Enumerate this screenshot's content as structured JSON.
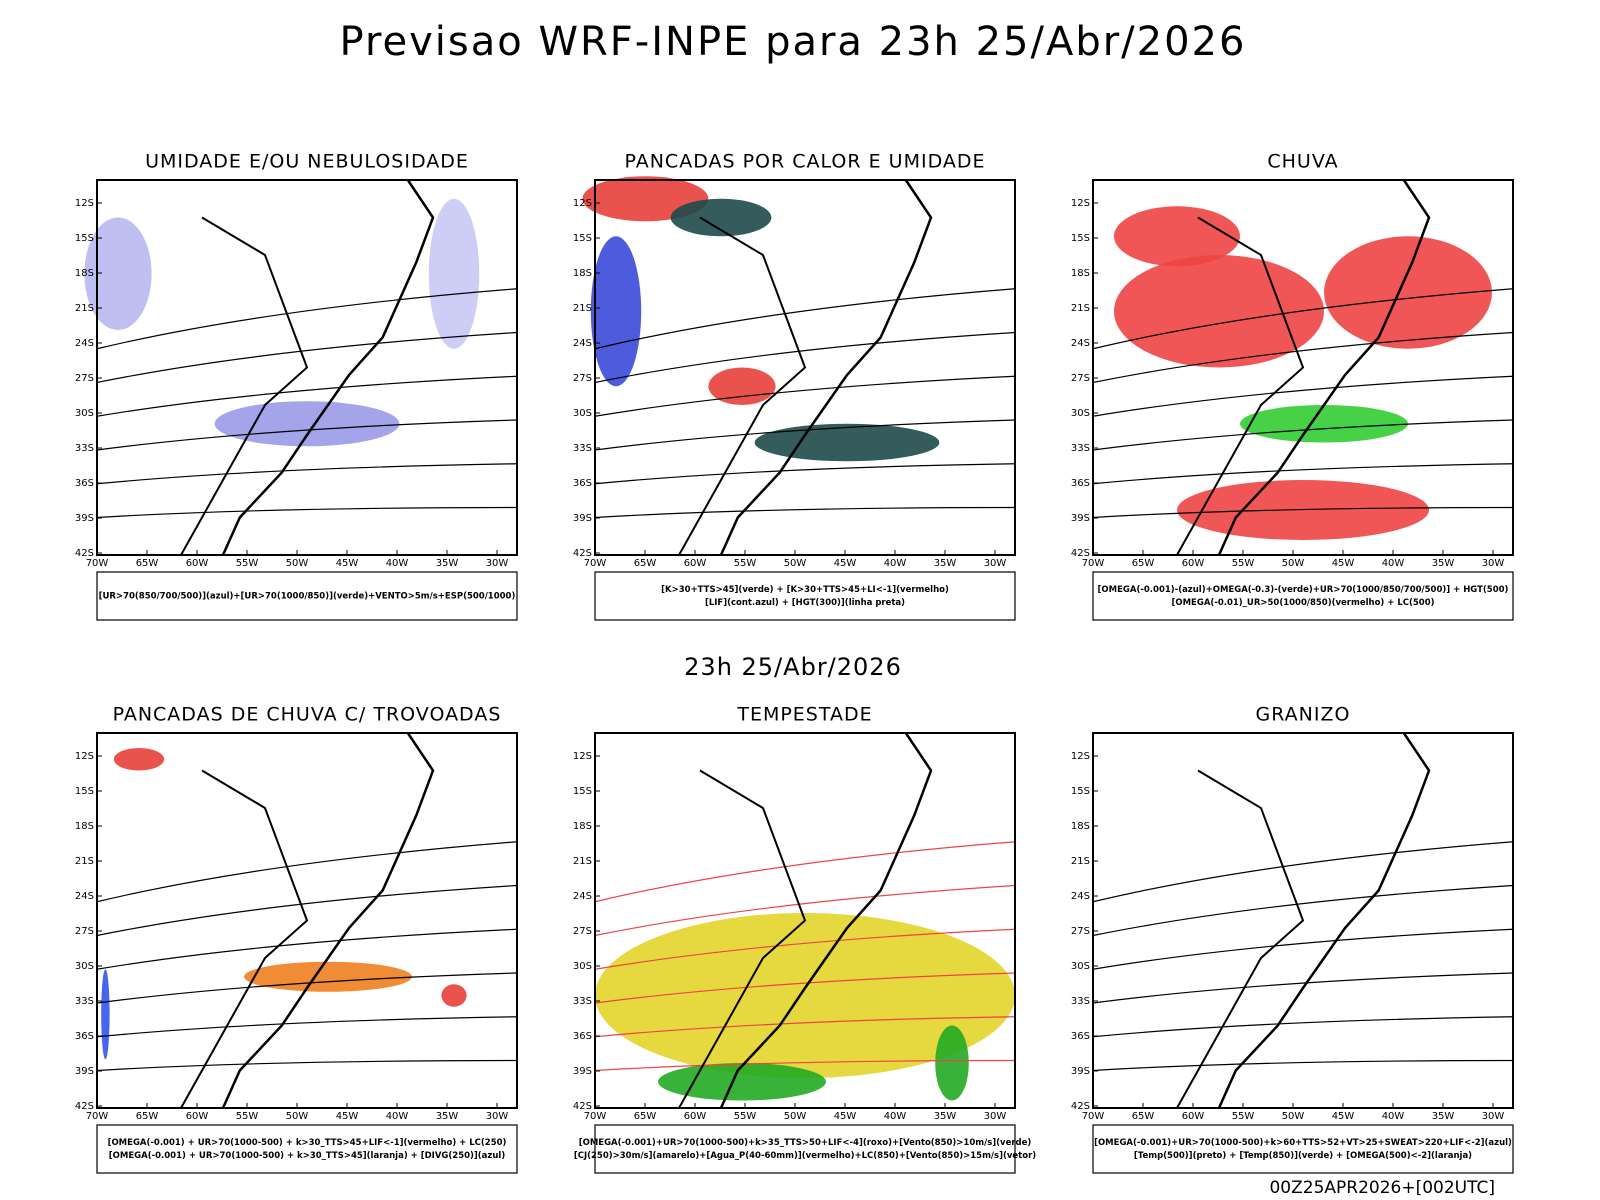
{
  "title": "Previsao WRF-INPE  para 23h 25/Abr/2026",
  "subtitle": "23h 25/Abr/2026",
  "footer": "00Z25APR2026+[002UTC]",
  "lat_labels": [
    "12S",
    "15S",
    "18S",
    "21S",
    "24S",
    "27S",
    "30S",
    "33S",
    "36S",
    "39S",
    "42S"
  ],
  "lon_labels": [
    "70W",
    "65W",
    "60W",
    "55W",
    "50W",
    "45W",
    "40W",
    "35W",
    "30W"
  ],
  "panels": [
    {
      "title": "UMIDADE E/OU NEBULOSIDADE",
      "legend": [
        "[UR>70(850/700/500)](azul)+[UR>70(1000/850)](verde)+VENTO>5m/s+ESP(500/1000)"
      ]
    },
    {
      "title": "PANCADAS POR CALOR E UMIDADE",
      "legend": [
        "[K>30+TTS>45](verde) + [K>30+TTS>45+LI<-1](vermelho)",
        "[LIF](cont.azul) + [HGT(300)](linha preta)"
      ]
    },
    {
      "title": "CHUVA",
      "legend": [
        "[OMEGA(-0.001)-(azul)+OMEGA(-0.3)-(verde)+UR>70(1000/850/700/500)] + HGT(500)",
        "[OMEGA(-0.01)_UR>50(1000/850)(vermelho) + LC(500)"
      ]
    },
    {
      "title": "PANCADAS DE CHUVA C/ TROVOADAS",
      "legend": [
        "[OMEGA(-0.001) + UR>70(1000-500) + k>30_TTS>45+LIF<-1](vermelho) + LC(250)",
        "[OMEGA(-0.001) + UR>70(1000-500) + k>30_TTS>45](laranja) + [DIVG(250)](azul)"
      ]
    },
    {
      "title": "TEMPESTADE",
      "legend": [
        "[OMEGA(-0.001)+UR>70(1000-500)+k>35_TTS>50+LIF<-4](roxo)+[Vento(850)>10m/s](verde)",
        "[CJ(250)>30m/s](amarelo)+[Agua_P(40-60mm)](vermelho)+LC(850)+[Vento(850)>15m/s](vetor)"
      ]
    },
    {
      "title": "GRANIZO",
      "legend": [
        "[OMEGA(-0.001)+UR>70(1000-500)+k>60+TTS>52+VT>25+SWEAT>220+LIF<-2](azul)",
        "[Temp(500)](preto) + [Temp(850)](verde) + [OMEGA(500)<-2](laranja)"
      ]
    }
  ]
}
